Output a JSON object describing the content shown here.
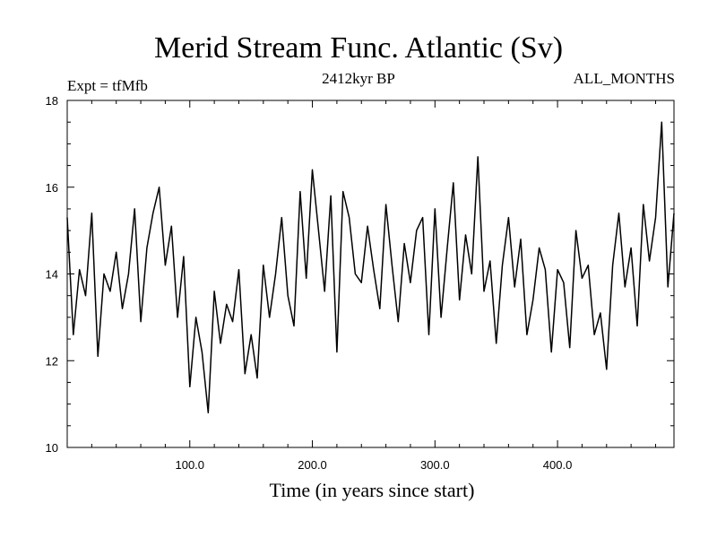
{
  "chart_data": {
    "type": "line",
    "title": "Merid Stream Func. Atlantic (Sv)",
    "subtitle": "2412kyr BP",
    "left_label": "Expt = tfMfb",
    "right_label": "ALL_MONTHS",
    "xlabel": "Time (in years since start)",
    "ylabel": "",
    "xlim": [
      0,
      495
    ],
    "ylim": [
      10,
      18
    ],
    "x_ticks": [
      100,
      200,
      300,
      400
    ],
    "x_tick_labels": [
      "100.0",
      "200.0",
      "300.0",
      "400.0"
    ],
    "y_ticks": [
      10,
      12,
      14,
      16,
      18
    ],
    "y_tick_labels": [
      "10",
      "12",
      "14",
      "16",
      "18"
    ],
    "series": [
      {
        "name": "Merid Stream Func. Atlantic",
        "x": [
          0,
          5,
          10,
          15,
          20,
          25,
          30,
          35,
          40,
          45,
          50,
          55,
          60,
          65,
          70,
          75,
          80,
          85,
          90,
          95,
          100,
          105,
          110,
          115,
          120,
          125,
          130,
          135,
          140,
          145,
          150,
          155,
          160,
          165,
          170,
          175,
          180,
          185,
          190,
          195,
          200,
          205,
          210,
          215,
          220,
          225,
          230,
          235,
          240,
          245,
          250,
          255,
          260,
          265,
          270,
          275,
          280,
          285,
          290,
          295,
          300,
          305,
          310,
          315,
          320,
          325,
          330,
          335,
          340,
          345,
          350,
          355,
          360,
          365,
          370,
          375,
          380,
          385,
          390,
          395,
          400,
          405,
          410,
          415,
          420,
          425,
          430,
          435,
          440,
          445,
          450,
          455,
          460,
          465,
          470,
          475,
          480,
          485,
          490,
          495
        ],
        "values": [
          15.3,
          12.6,
          14.1,
          13.5,
          15.4,
          12.1,
          14.0,
          13.6,
          14.5,
          13.2,
          14.0,
          15.5,
          12.9,
          14.6,
          15.4,
          16.0,
          14.2,
          15.1,
          13.0,
          14.4,
          11.4,
          13.0,
          12.2,
          10.8,
          13.6,
          12.4,
          13.3,
          12.9,
          14.1,
          11.7,
          12.6,
          11.6,
          14.2,
          13.0,
          14.0,
          15.3,
          13.5,
          12.8,
          15.9,
          13.9,
          16.4,
          15.0,
          13.6,
          15.8,
          12.2,
          15.9,
          15.3,
          14.0,
          13.8,
          15.1,
          14.1,
          13.2,
          15.6,
          14.2,
          12.9,
          14.7,
          13.8,
          15.0,
          15.3,
          12.6,
          15.5,
          13.0,
          14.6,
          16.1,
          13.4,
          14.9,
          14.0,
          16.7,
          13.6,
          14.3,
          12.4,
          14.2,
          15.3,
          13.7,
          14.8,
          12.6,
          13.4,
          14.6,
          14.1,
          12.2,
          14.1,
          13.8,
          12.3,
          15.0,
          13.9,
          14.2,
          12.6,
          13.1,
          11.8,
          14.2,
          15.4,
          13.7,
          14.6,
          12.8,
          15.6,
          14.3,
          15.3,
          17.5,
          13.7,
          15.4
        ]
      }
    ]
  }
}
